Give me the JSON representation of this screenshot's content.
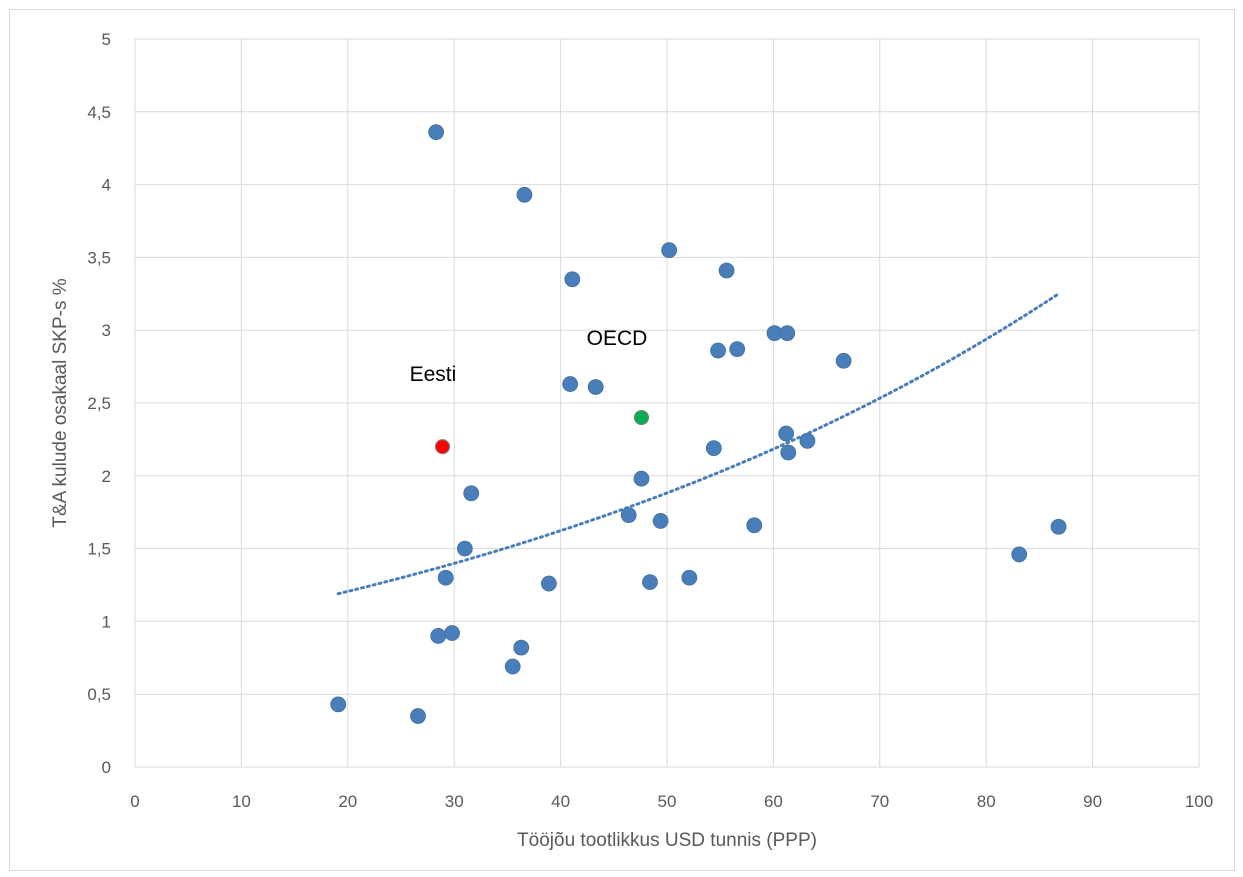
{
  "chart_data": {
    "type": "scatter",
    "title": "",
    "xlabel": "Tööjõu tootlikkus USD tunnis (PPP)",
    "ylabel": "T&A kulude osakaal SKP-s %",
    "xlim": [
      0,
      100
    ],
    "ylim": [
      0,
      5
    ],
    "x_ticks": [
      "0",
      "10",
      "20",
      "30",
      "40",
      "50",
      "60",
      "70",
      "80",
      "90",
      "100"
    ],
    "y_ticks": [
      "0",
      "0,5",
      "1",
      "1,5",
      "2",
      "2,5",
      "3",
      "3,5",
      "4",
      "4,5",
      "5"
    ],
    "grid": true,
    "legend": "none",
    "colors": {
      "points": "#4a7ebb",
      "eesti": "#ff0000",
      "oecd": "#00b050",
      "trend": "#4a7ebb",
      "grid": "#d9d9d9"
    },
    "series": [
      {
        "points": [
          {
            "x": 28.3,
            "y": 4.36
          },
          {
            "x": 36.6,
            "y": 3.93
          },
          {
            "x": 50.2,
            "y": 3.55
          },
          {
            "x": 41.1,
            "y": 3.35
          },
          {
            "x": 55.6,
            "y": 3.41
          },
          {
            "x": 60.1,
            "y": 2.98
          },
          {
            "x": 61.3,
            "y": 2.98
          },
          {
            "x": 54.8,
            "y": 2.86
          },
          {
            "x": 56.6,
            "y": 2.87
          },
          {
            "x": 66.6,
            "y": 2.79
          },
          {
            "x": 40.9,
            "y": 2.63
          },
          {
            "x": 43.3,
            "y": 2.61
          },
          {
            "x": 61.2,
            "y": 2.29
          },
          {
            "x": 63.2,
            "y": 2.24
          },
          {
            "x": 54.4,
            "y": 2.19
          },
          {
            "x": 61.4,
            "y": 2.16
          },
          {
            "x": 47.6,
            "y": 1.98
          },
          {
            "x": 31.6,
            "y": 1.88
          },
          {
            "x": 46.4,
            "y": 1.73
          },
          {
            "x": 49.4,
            "y": 1.69
          },
          {
            "x": 58.2,
            "y": 1.66
          },
          {
            "x": 86.8,
            "y": 1.65
          },
          {
            "x": 31.0,
            "y": 1.5
          },
          {
            "x": 83.1,
            "y": 1.46
          },
          {
            "x": 29.2,
            "y": 1.3
          },
          {
            "x": 52.1,
            "y": 1.3
          },
          {
            "x": 48.4,
            "y": 1.27
          },
          {
            "x": 38.9,
            "y": 1.26
          },
          {
            "x": 29.8,
            "y": 0.92
          },
          {
            "x": 28.5,
            "y": 0.9
          },
          {
            "x": 36.3,
            "y": 0.82
          },
          {
            "x": 35.5,
            "y": 0.69
          },
          {
            "x": 19.1,
            "y": 0.43
          },
          {
            "x": 26.6,
            "y": 0.35
          }
        ]
      }
    ],
    "highlights": [
      {
        "label": "Eesti",
        "x": 28.9,
        "y": 2.2,
        "color": "#ff0000",
        "label_x": 28.0,
        "label_y": 2.65
      },
      {
        "label": "OECD",
        "x": 47.6,
        "y": 2.4,
        "color": "#00b050",
        "label_x": 45.3,
        "label_y": 2.9
      }
    ],
    "trendline": {
      "type": "exponential",
      "x_start": 19.1,
      "x_end": 86.8,
      "y_start": 1.19,
      "y_end": 3.25
    }
  }
}
